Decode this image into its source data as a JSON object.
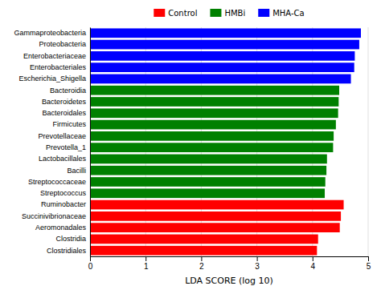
{
  "chart_data": {
    "type": "bar",
    "orientation": "horizontal",
    "categories": [
      "Gammaproteobacteria",
      "Proteobacteria",
      "Enterobacteriaceae",
      "Enterobacteriales",
      "Escherichia_Shigella",
      "Bacteroidia",
      "Bacteroidetes",
      "Bacteroidales",
      "Firmicutes",
      "Prevotellaceae",
      "Prevotella_1",
      "Lactobacillales",
      "Bacilli",
      "Streptococcaceae",
      "Streptococcus",
      "Ruminobacter",
      "Succinivibrionaceae",
      "Aeromonadales",
      "Clostridia",
      "Clostridiales"
    ],
    "series": [
      {
        "name": "Control",
        "color": "#ff0000",
        "values": [
          null,
          null,
          null,
          null,
          null,
          null,
          null,
          null,
          null,
          null,
          null,
          null,
          null,
          null,
          null,
          4.56,
          4.51,
          4.49,
          4.1,
          4.08
        ]
      },
      {
        "name": "HMBi",
        "color": "#008000",
        "values": [
          null,
          null,
          null,
          null,
          null,
          4.48,
          4.47,
          4.46,
          4.42,
          4.38,
          4.37,
          4.26,
          4.25,
          4.23,
          4.22,
          null,
          null,
          null,
          null,
          null
        ]
      },
      {
        "name": "MHA-Ca",
        "color": "#0000ff",
        "values": [
          4.87,
          4.84,
          4.76,
          4.75,
          4.69,
          null,
          null,
          null,
          null,
          null,
          null,
          null,
          null,
          null,
          null,
          null,
          null,
          null,
          null,
          null
        ]
      }
    ],
    "xlabel": "LDA SCORE (log 10)",
    "xlim": [
      0,
      5
    ],
    "xticks": [
      0,
      1,
      2,
      3,
      4,
      5
    ],
    "grid": true,
    "legend": "top"
  }
}
